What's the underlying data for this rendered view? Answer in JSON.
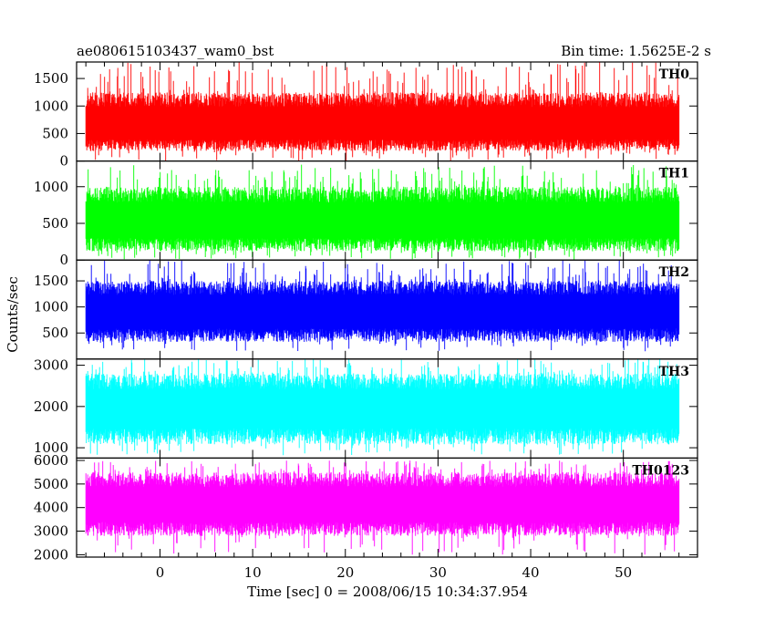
{
  "header": {
    "title_left": "ae080615103437_wam0_bst",
    "title_right": "Bin time: 1.5625E-2 s"
  },
  "chart_data": {
    "type": "line",
    "xlabel": "Time [sec] 0 = 2008/06/15 10:34:37.954",
    "ylabel": "Counts/sec",
    "xlim": [
      -9,
      58
    ],
    "x_ticks": [
      0,
      10,
      20,
      30,
      40,
      50
    ],
    "x_data_range": [
      -8,
      56
    ],
    "bin_time_s": 0.015625,
    "grid": false,
    "panels": [
      {
        "name": "TH0",
        "color": "#ff0000",
        "ylim": [
          0,
          1800
        ],
        "y_ticks": [
          0,
          500,
          1000,
          1500
        ],
        "mean": 650,
        "upper": 1250,
        "lower": 180,
        "max": 1800,
        "min": 0
      },
      {
        "name": "TH1",
        "color": "#00ff00",
        "ylim": [
          0,
          1350
        ],
        "y_ticks": [
          0,
          500,
          1000
        ],
        "mean": 520,
        "upper": 1000,
        "lower": 120,
        "max": 1300,
        "min": 0
      },
      {
        "name": "TH2",
        "color": "#0000ff",
        "ylim": [
          0,
          1900
        ],
        "y_ticks": [
          500,
          1000,
          1500
        ],
        "mean": 900,
        "upper": 1500,
        "lower": 330,
        "max": 1900,
        "min": 150
      },
      {
        "name": "TH3",
        "color": "#00ffff",
        "ylim": [
          750,
          3150
        ],
        "y_ticks": [
          1000,
          2000,
          3000
        ],
        "mean": 1950,
        "upper": 2800,
        "lower": 1080,
        "max": 3150,
        "min": 800
      },
      {
        "name": "TH0123",
        "color": "#ff00ff",
        "ylim": [
          1900,
          6100
        ],
        "y_ticks": [
          2000,
          3000,
          4000,
          5000,
          6000
        ],
        "mean": 4100,
        "upper": 5500,
        "lower": 2800,
        "max": 6000,
        "min": 2000
      }
    ]
  }
}
